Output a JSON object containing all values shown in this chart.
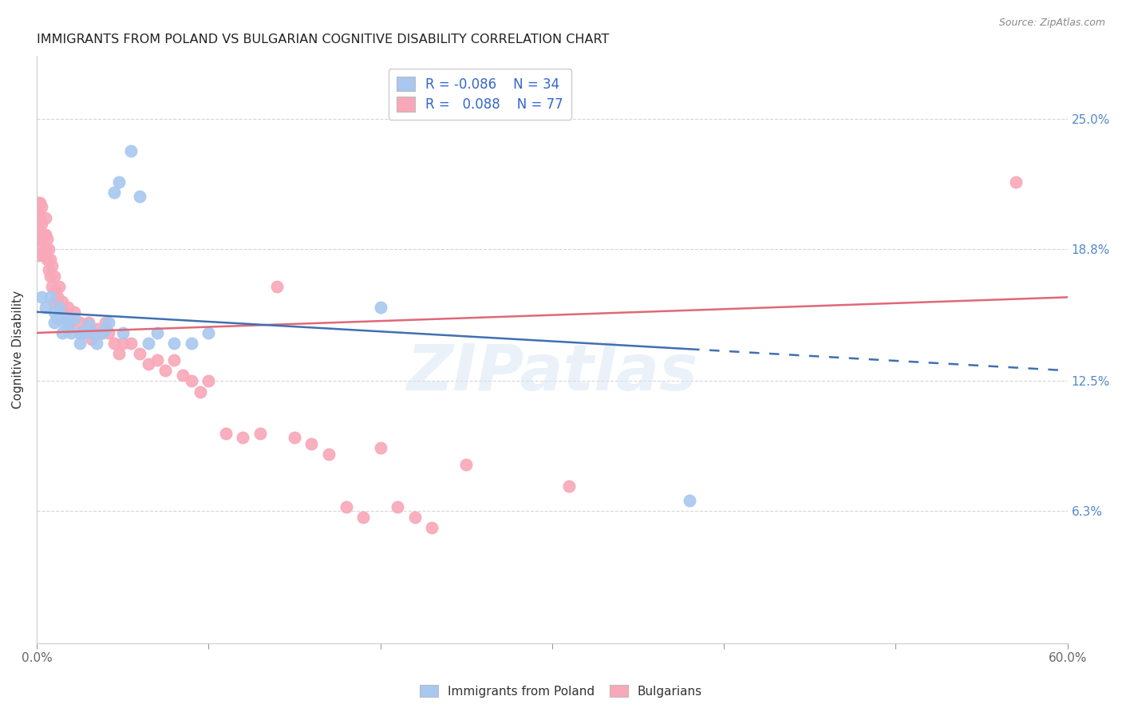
{
  "title": "IMMIGRANTS FROM POLAND VS BULGARIAN COGNITIVE DISABILITY CORRELATION CHART",
  "source": "Source: ZipAtlas.com",
  "ylabel": "Cognitive Disability",
  "ytick_labels": [
    "25.0%",
    "18.8%",
    "12.5%",
    "6.3%"
  ],
  "ytick_values": [
    0.25,
    0.188,
    0.125,
    0.063
  ],
  "xlim": [
    0.0,
    0.6
  ],
  "ylim": [
    0.0,
    0.28
  ],
  "blue_color": "#a8c8f0",
  "pink_color": "#f8a8b8",
  "blue_line_color": "#4070b0",
  "pink_line_color": "#e06878",
  "grid_color": "#cccccc",
  "background_color": "#ffffff",
  "watermark": "ZIPatlas",
  "blue_points_x": [
    0.003,
    0.005,
    0.008,
    0.01,
    0.01,
    0.012,
    0.013,
    0.015,
    0.016,
    0.017,
    0.018,
    0.02,
    0.022,
    0.025,
    0.025,
    0.028,
    0.03,
    0.032,
    0.035,
    0.038,
    0.04,
    0.042,
    0.045,
    0.048,
    0.05,
    0.055,
    0.06,
    0.065,
    0.07,
    0.08,
    0.09,
    0.1,
    0.2,
    0.38
  ],
  "blue_points_y": [
    0.165,
    0.16,
    0.165,
    0.158,
    0.153,
    0.155,
    0.16,
    0.148,
    0.153,
    0.155,
    0.15,
    0.148,
    0.155,
    0.148,
    0.143,
    0.148,
    0.152,
    0.148,
    0.143,
    0.148,
    0.15,
    0.153,
    0.215,
    0.22,
    0.148,
    0.235,
    0.213,
    0.143,
    0.148,
    0.143,
    0.143,
    0.148,
    0.16,
    0.068
  ],
  "pink_points_x": [
    0.001,
    0.001,
    0.001,
    0.001,
    0.001,
    0.002,
    0.002,
    0.002,
    0.002,
    0.003,
    0.003,
    0.003,
    0.004,
    0.004,
    0.005,
    0.005,
    0.005,
    0.006,
    0.006,
    0.007,
    0.007,
    0.008,
    0.008,
    0.009,
    0.009,
    0.01,
    0.01,
    0.011,
    0.012,
    0.013,
    0.014,
    0.015,
    0.016,
    0.017,
    0.018,
    0.019,
    0.02,
    0.022,
    0.025,
    0.025,
    0.028,
    0.03,
    0.032,
    0.035,
    0.038,
    0.04,
    0.042,
    0.045,
    0.048,
    0.05,
    0.055,
    0.06,
    0.065,
    0.07,
    0.075,
    0.08,
    0.085,
    0.09,
    0.095,
    0.1,
    0.11,
    0.12,
    0.13,
    0.14,
    0.15,
    0.16,
    0.17,
    0.18,
    0.19,
    0.2,
    0.21,
    0.22,
    0.23,
    0.25,
    0.31,
    0.57
  ],
  "pink_points_y": [
    0.21,
    0.205,
    0.198,
    0.193,
    0.185,
    0.21,
    0.203,
    0.195,
    0.188,
    0.208,
    0.2,
    0.193,
    0.195,
    0.185,
    0.203,
    0.195,
    0.188,
    0.193,
    0.183,
    0.188,
    0.178,
    0.183,
    0.175,
    0.18,
    0.17,
    0.175,
    0.163,
    0.168,
    0.165,
    0.17,
    0.16,
    0.163,
    0.158,
    0.155,
    0.16,
    0.152,
    0.155,
    0.158,
    0.153,
    0.148,
    0.148,
    0.153,
    0.145,
    0.15,
    0.148,
    0.153,
    0.148,
    0.143,
    0.138,
    0.143,
    0.143,
    0.138,
    0.133,
    0.135,
    0.13,
    0.135,
    0.128,
    0.125,
    0.12,
    0.125,
    0.1,
    0.098,
    0.1,
    0.17,
    0.098,
    0.095,
    0.09,
    0.065,
    0.06,
    0.093,
    0.065,
    0.06,
    0.055,
    0.085,
    0.075,
    0.22
  ]
}
